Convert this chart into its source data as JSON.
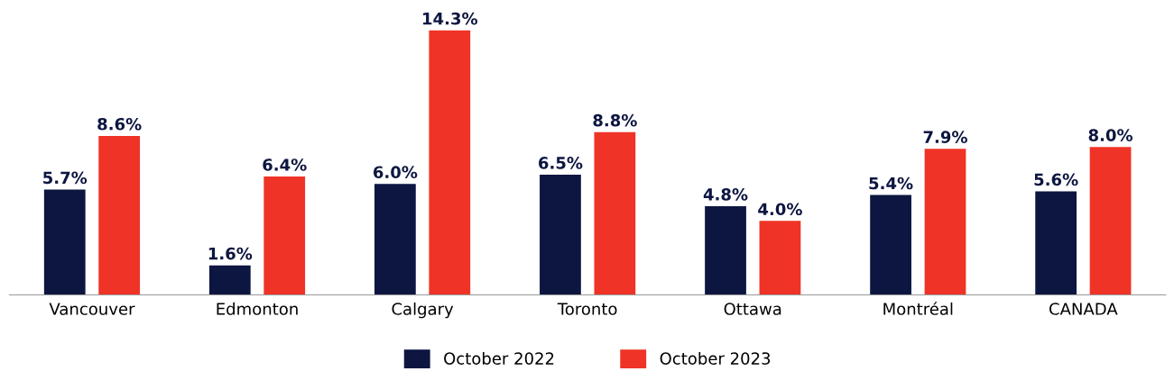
{
  "chart_data": {
    "type": "bar",
    "categories": [
      "Vancouver",
      "Edmonton",
      "Calgary",
      "Toronto",
      "Ottawa",
      "Montréal",
      "CANADA"
    ],
    "series": [
      {
        "name": "October 2022",
        "color": "#0d1640",
        "values": [
          5.7,
          1.6,
          6.0,
          6.5,
          4.8,
          5.4,
          5.6
        ],
        "value_labels": [
          "5.7%",
          "1.6%",
          "6.0%",
          "6.5%",
          "4.8%",
          "5.4%",
          "5.6%"
        ]
      },
      {
        "name": "October 2023",
        "color": "#ef3326",
        "values": [
          8.6,
          6.4,
          14.3,
          8.8,
          4.0,
          7.9,
          8.0
        ],
        "value_labels": [
          "8.6%",
          "6.4%",
          "14.3%",
          "8.8%",
          "4.0%",
          "7.9%",
          "8.0%"
        ]
      }
    ],
    "legend": "bottom",
    "grid": false
  }
}
